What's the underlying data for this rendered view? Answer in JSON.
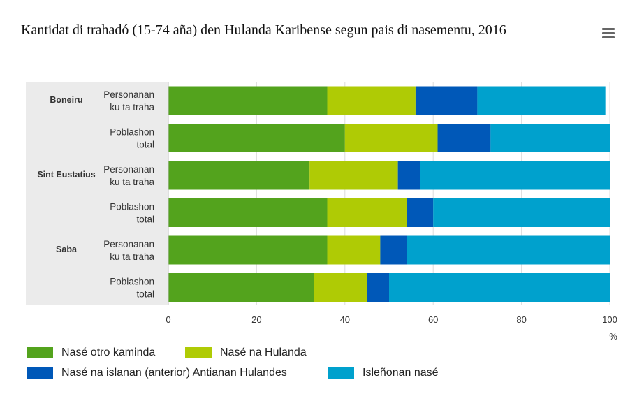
{
  "title": "Kantidat di trahadó (15-74 aña) den Hulanda Karibense segun pais di nasementu, 2016",
  "menu_icon": "hamburger-menu-icon",
  "chart_data": {
    "type": "bar",
    "orientation": "horizontal",
    "stacked": true,
    "title": "Kantidat di trahadó (15-74 aña) den Hulanda Karibense segun pais di nasementu, 2016",
    "xlabel": "%",
    "xlim": [
      0,
      100
    ],
    "xticks": [
      0,
      20,
      40,
      60,
      80,
      100
    ],
    "groups": [
      {
        "name": "Boneiru",
        "rows": [
          {
            "label": [
              "Personanan",
              "ku ta traha"
            ],
            "values": [
              36,
              20,
              14,
              29
            ]
          },
          {
            "label": [
              "Poblashon",
              "total"
            ],
            "values": [
              40,
              21,
              12,
              27
            ]
          }
        ]
      },
      {
        "name": "Sint Eustatius",
        "rows": [
          {
            "label": [
              "Personanan",
              "ku ta traha"
            ],
            "values": [
              32,
              20,
              5,
              43
            ]
          },
          {
            "label": [
              "Poblashon",
              "total"
            ],
            "values": [
              36,
              18,
              6,
              40
            ]
          }
        ]
      },
      {
        "name": "Saba",
        "rows": [
          {
            "label": [
              "Personanan",
              "ku ta traha"
            ],
            "values": [
              36,
              12,
              6,
              46
            ]
          },
          {
            "label": [
              "Poblashon",
              "total"
            ],
            "values": [
              33,
              12,
              5,
              50
            ]
          }
        ]
      }
    ],
    "series": [
      {
        "name": "Nasé otro kaminda",
        "color": "#53a31d"
      },
      {
        "name": "Nasé na Hulanda",
        "color": "#afcb05"
      },
      {
        "name": "Nasé na islanan (anterior) Antianan Hulandes",
        "color": "#0058b8"
      },
      {
        "name": "Isleñonan nasé",
        "color": "#00a1cd"
      }
    ],
    "legend_position": "bottom"
  }
}
